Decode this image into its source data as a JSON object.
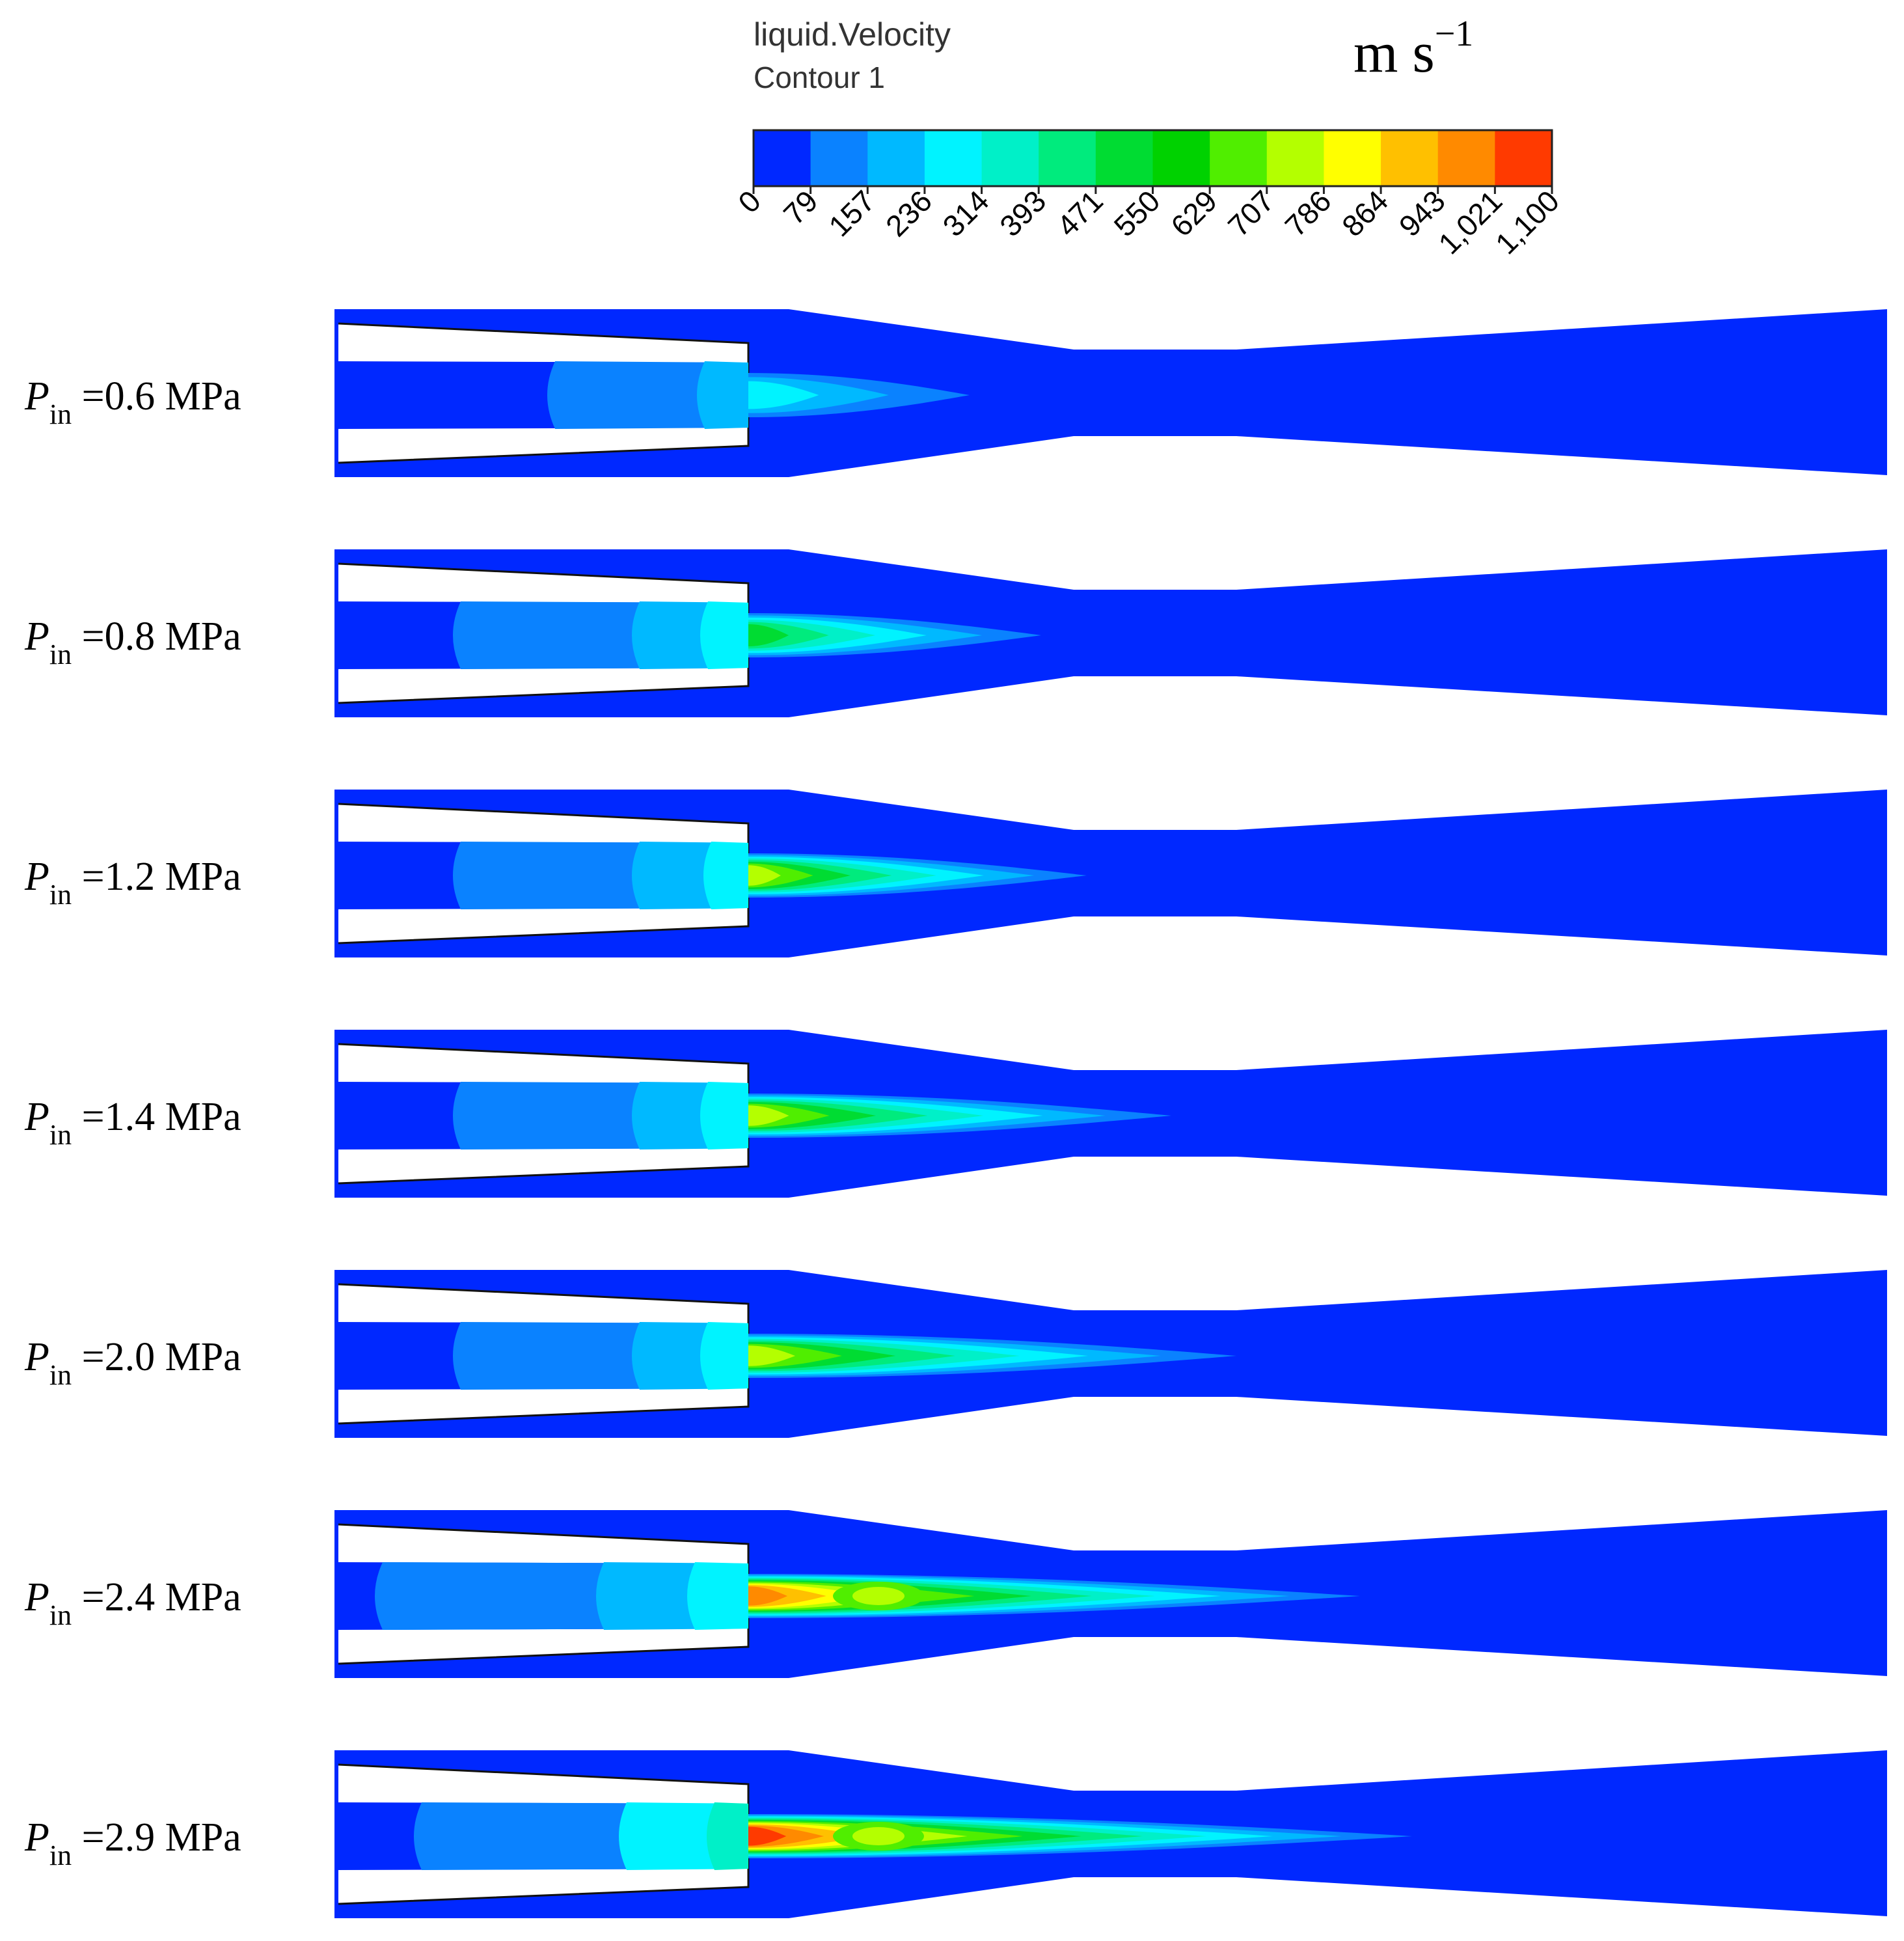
{
  "legend": {
    "title": "liquid.Velocity",
    "subtitle": "Contour 1",
    "unit": "m s",
    "unit_exponent": "−1",
    "ticks": [
      "0",
      "79",
      "157",
      "236",
      "314",
      "393",
      "471",
      "550",
      "629",
      "707",
      "786",
      "864",
      "943",
      "1,021",
      "1,100"
    ],
    "colors": [
      "#0028ff",
      "#0a82ff",
      "#00b9ff",
      "#00f3ff",
      "#00f0c8",
      "#00eb7d",
      "#00dc32",
      "#00d200",
      "#50ee00",
      "#b4ff00",
      "#ffff00",
      "#ffc000",
      "#ff8a00",
      "#ff3a00"
    ]
  },
  "panels": [
    {
      "symbol": "P",
      "subscript": "in",
      "value": " =0.6 MPa"
    },
    {
      "symbol": "P",
      "subscript": "in",
      "value": " =0.8 MPa"
    },
    {
      "symbol": "P",
      "subscript": "in",
      "value": " =1.2 MPa"
    },
    {
      "symbol": "P",
      "subscript": "in",
      "value": " =1.4 MPa"
    },
    {
      "symbol": "P",
      "subscript": "in",
      "value": " =2.0 MPa"
    },
    {
      "symbol": "P",
      "subscript": "in",
      "value": " =2.4 MPa"
    },
    {
      "symbol": "P",
      "subscript": "in",
      "value": " =2.9 MPa"
    }
  ],
  "colors": {
    "background_flow": "#0028ff",
    "level_1": "#0a82ff",
    "level_2": "#00b9ff",
    "level_3": "#00f3ff",
    "level_4": "#00f0c8",
    "level_5": "#00eb7d",
    "level_6": "#00dc32",
    "level_7": "#50ee00",
    "level_8": "#b4ff00",
    "level_9": "#ffff00",
    "level_10": "#ffc000",
    "level_11": "#ff8a00",
    "level_12": "#ff3a00"
  }
}
